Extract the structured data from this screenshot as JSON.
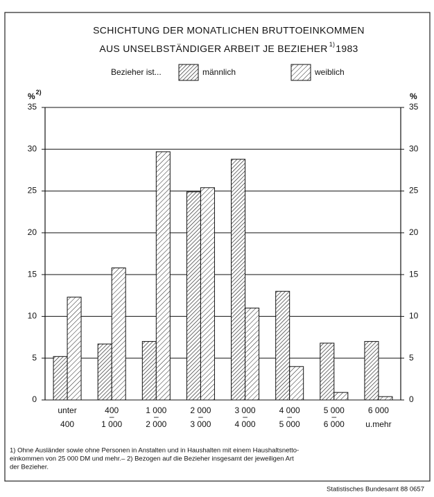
{
  "chart_data": {
    "type": "bar",
    "title": [
      "SCHICHTUNG DER MONATLICHEN BRUTTOEINKOMMEN",
      "AUS UNSELBSTÄNDIGER ARBEIT JE BEZIEHER"
    ],
    "title_superscript": "1)",
    "title_year": "1983",
    "legend_title": "Bezieher ist...",
    "y_label": "%",
    "y_label_superscript": "2)",
    "y2_label": "%",
    "categories": [
      [
        "unter",
        "400"
      ],
      [
        "400",
        "–",
        "1 000"
      ],
      [
        "1 000",
        "–",
        "2 000"
      ],
      [
        "2 000",
        "–",
        "3 000"
      ],
      [
        "3 000",
        "–",
        "4 000"
      ],
      [
        "4 000",
        "–",
        "5 000"
      ],
      [
        "5 000",
        "–",
        "6 000"
      ],
      [
        "6 000",
        "u.mehr"
      ]
    ],
    "series": [
      {
        "name": "männlich",
        "color": "#222222",
        "values": [
          5.2,
          6.7,
          7.0,
          24.9,
          28.8,
          13.0,
          6.8,
          7.0
        ]
      },
      {
        "name": "weiblich",
        "color": "#222222",
        "values": [
          12.3,
          15.8,
          29.7,
          25.4,
          11.0,
          4.0,
          0.9,
          0.4
        ]
      }
    ],
    "ylim": [
      0,
      35
    ],
    "yticks": [
      0,
      5,
      10,
      15,
      20,
      25,
      30,
      35
    ],
    "grid": true,
    "footnotes": [
      "1) Ohne Ausländer sowie ohne Personen in Anstalten und in Haushalten mit einem Haushaltsnetto-",
      "einkommen von 25 000 DM und mehr.– 2) Bezogen auf die Bezieher insgesamt der jeweiligen Art",
      "der Bezieher."
    ],
    "source": "Statistisches Bundesamt 88 0657"
  }
}
